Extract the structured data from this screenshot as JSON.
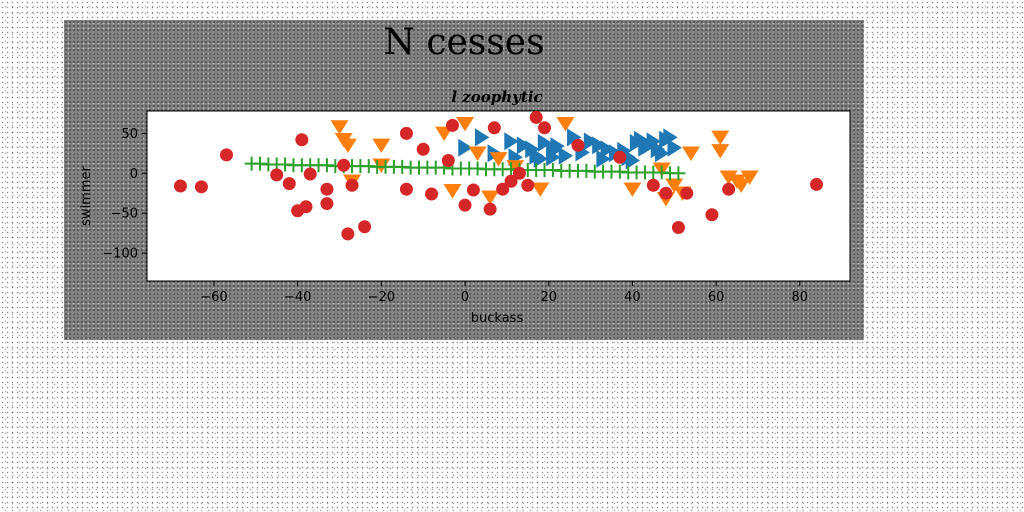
{
  "chart_data": {
    "type": "scatter",
    "title": "N cesses",
    "subtitle": "l zoophytic",
    "xlabel": "buckass",
    "ylabel": "swimmer",
    "xlim": [
      -76,
      92
    ],
    "ylim": [
      -135,
      78
    ],
    "xticks": [
      -60,
      -40,
      -20,
      0,
      20,
      40,
      60,
      80
    ],
    "yticks": [
      50,
      0,
      -50,
      -100
    ],
    "grid": false,
    "colors": {
      "blue": "#1f77b4",
      "orange": "#ff7f0e",
      "green": "#2ca02c",
      "red": "#d62728"
    },
    "series": [
      {
        "marker": "triangle-right",
        "color": "#1f77b4",
        "x": [
          0,
          4,
          7,
          11,
          14,
          16,
          17,
          19,
          21,
          21,
          22,
          26,
          28,
          30,
          32,
          34,
          36,
          38,
          39,
          41,
          42,
          43,
          44,
          45,
          46,
          47,
          48,
          49,
          50,
          12,
          18,
          24,
          33,
          40
        ],
        "y": [
          32,
          45,
          25,
          40,
          35,
          30,
          22,
          38,
          28,
          20,
          34,
          45,
          26,
          40,
          35,
          30,
          25,
          28,
          20,
          38,
          42,
          32,
          35,
          40,
          30,
          25,
          42,
          45,
          32,
          20,
          18,
          22,
          18,
          16
        ]
      },
      {
        "marker": "triangle-down",
        "color": "#ff7f0e",
        "x": [
          -30,
          -29,
          -28,
          -27,
          -20,
          -20,
          -5,
          0,
          -3,
          3,
          6,
          8,
          12,
          18,
          24,
          40,
          47,
          48,
          50,
          52,
          54,
          61,
          61,
          63,
          65,
          66,
          68
        ],
        "y": [
          58,
          42,
          35,
          -10,
          35,
          10,
          50,
          62,
          -22,
          25,
          -30,
          18,
          8,
          -20,
          62,
          -20,
          5,
          -32,
          -15,
          -25,
          25,
          45,
          28,
          -5,
          -10,
          -15,
          -5
        ]
      },
      {
        "marker": "plus",
        "color": "#2ca02c",
        "x": [
          -51,
          -49,
          -47,
          -45,
          -43,
          -41,
          -39,
          -37,
          -35,
          -33,
          -31,
          -29,
          -27,
          -25,
          -23,
          -21,
          -19,
          -17,
          -15,
          -13,
          -11,
          -9,
          -7,
          -5,
          -3,
          -1,
          1,
          3,
          5,
          7,
          9,
          11,
          13,
          15,
          17,
          19,
          21,
          23,
          25,
          27,
          29,
          31,
          33,
          35,
          37,
          39,
          41,
          43,
          45,
          47,
          49,
          51
        ],
        "y": [
          12,
          12,
          11,
          11,
          11,
          10,
          10,
          10,
          10,
          10,
          9,
          9,
          9,
          9,
          9,
          8,
          8,
          8,
          8,
          7,
          7,
          7,
          7,
          7,
          6,
          6,
          6,
          6,
          5,
          5,
          5,
          5,
          4,
          4,
          4,
          4,
          4,
          3,
          3,
          3,
          3,
          2,
          2,
          2,
          2,
          1,
          1,
          1,
          1,
          1,
          0,
          0
        ]
      },
      {
        "marker": "circle",
        "color": "#d62728",
        "x": [
          -68,
          -63,
          -57,
          -45,
          -42,
          -40,
          -39,
          -38,
          -37,
          -33,
          -33,
          -29,
          -28,
          -27,
          -24,
          -14,
          -14,
          -10,
          -8,
          -4,
          -3,
          0,
          2,
          6,
          7,
          9,
          11,
          13,
          15,
          17,
          19,
          27,
          37,
          45,
          48,
          51,
          53,
          59,
          63,
          84
        ],
        "y": [
          -16,
          -17,
          23,
          -2,
          -13,
          -47,
          42,
          -42,
          -1,
          -20,
          -38,
          10,
          -76,
          -15,
          -67,
          50,
          -20,
          30,
          -26,
          16,
          60,
          -40,
          -21,
          -45,
          57,
          -20,
          -10,
          0,
          -15,
          70,
          57,
          35,
          20,
          -15,
          -25,
          -68,
          -25,
          -52,
          -20,
          -14
        ]
      }
    ]
  }
}
